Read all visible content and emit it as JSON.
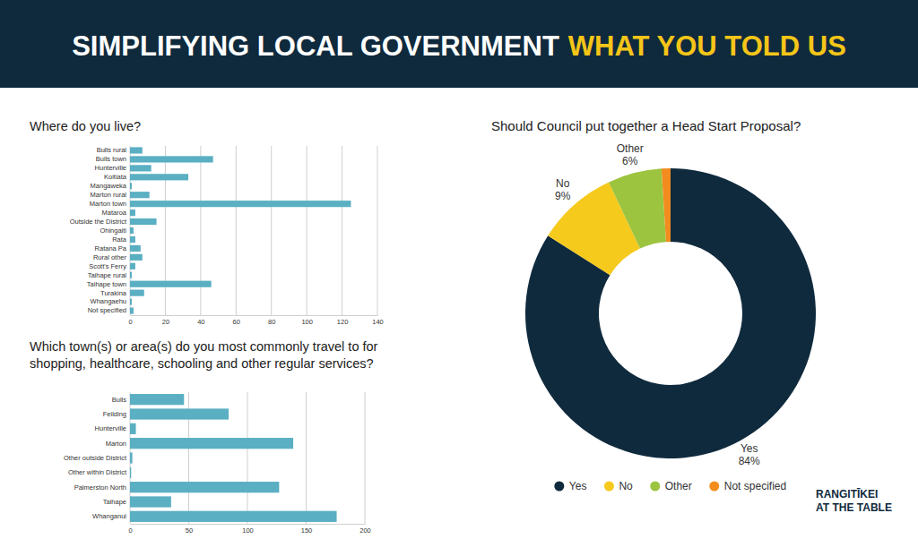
{
  "header": {
    "title": "SIMPLIFYING LOCAL GOVERNMENT",
    "highlight": "WHAT YOU TOLD US"
  },
  "logo": {
    "lines": [
      "RANGITĪKEI",
      "AT THE TABLE"
    ]
  },
  "chart_data": [
    {
      "type": "bar",
      "orientation": "horizontal",
      "title": "Where do you live?",
      "categories": [
        "Bulls rural",
        "Bulls town",
        "Hunterville",
        "Koitiata",
        "Mangaweka",
        "Marton rural",
        "Marton town",
        "Mataroa",
        "Outside the District",
        "Ohingaiti",
        "Rata",
        "Ratana Pa",
        "Rural other",
        "Scott's Ferry",
        "Taihape rural",
        "Taihape town",
        "Turakina",
        "Whangaehu",
        "Not specified"
      ],
      "values": [
        7,
        47,
        12,
        33,
        1,
        11,
        125,
        3,
        15,
        2,
        3,
        6,
        7,
        3,
        1,
        46,
        8,
        1,
        2
      ],
      "color": "#5aafc2",
      "xlim": [
        0,
        140
      ],
      "xticks": [
        0,
        20,
        40,
        60,
        80,
        100,
        120,
        140
      ],
      "grid": true
    },
    {
      "type": "bar",
      "orientation": "horizontal",
      "title": "Which town(s) or area(s) do you most commonly travel to for shopping, healthcare, schooling and other regular services?",
      "categories": [
        "Bulls",
        "Feilding",
        "Hunterville",
        "Marton",
        "Other outside District",
        "Other within District",
        "Palmerston North",
        "Taihape",
        "Whanganui"
      ],
      "values": [
        46,
        84,
        5,
        139,
        2,
        1,
        127,
        35,
        176
      ],
      "color": "#5aafc2",
      "xlim": [
        0,
        200
      ],
      "xticks": [
        0,
        50,
        100,
        150,
        200
      ],
      "grid": true
    },
    {
      "type": "pie",
      "title": "Should Council put together a Head Start Proposal?",
      "categories": [
        "Yes",
        "No",
        "Other",
        "Not specified"
      ],
      "values": [
        84,
        9,
        6,
        1
      ],
      "value_labels": [
        "84%",
        "9%",
        "6%",
        null
      ],
      "colors": [
        "#0f2a3d",
        "#f6c91d",
        "#9cc43f",
        "#f28c1e"
      ],
      "data_labels": true,
      "legend": "bottom"
    }
  ]
}
